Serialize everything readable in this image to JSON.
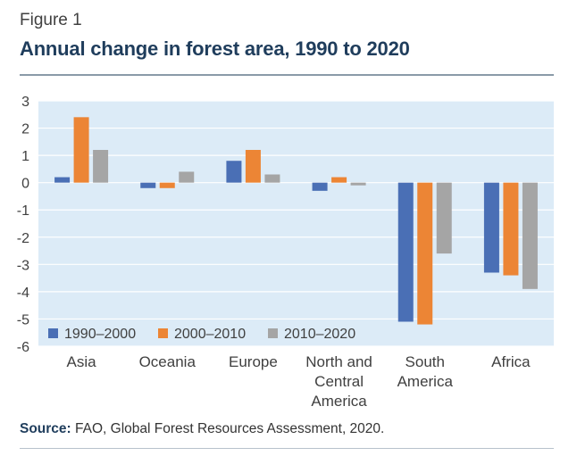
{
  "figure_label": "Figure 1",
  "title": "Annual change in forest area, 1990 to 2020",
  "source": {
    "label": "Source:",
    "text": " FAO, Global Forest Resources Assessment, 2020."
  },
  "colors": {
    "plot_background": "#dcebf7",
    "gridline": "#ffffff",
    "title": "#1f3d5c",
    "rule": "#8a9aa8"
  },
  "chart_data": {
    "type": "bar",
    "title": "Annual change in forest area, 1990 to 2020",
    "xlabel": "",
    "ylabel": "",
    "ylim": [
      -6,
      3
    ],
    "yticks": [
      3,
      2,
      1,
      0,
      -1,
      -2,
      -3,
      -4,
      -5,
      -6
    ],
    "grid": true,
    "legend_position": "bottom-left",
    "categories": [
      [
        "Asia"
      ],
      [
        "Oceania"
      ],
      [
        "Europe"
      ],
      [
        "North and",
        "Central",
        "America"
      ],
      [
        "South",
        "America"
      ],
      [
        "Africa"
      ]
    ],
    "series": [
      {
        "name": "1990–2000",
        "color": "#4a6fb5",
        "values": [
          0.2,
          -0.2,
          0.8,
          -0.3,
          -5.1,
          -3.3
        ]
      },
      {
        "name": "2000–2010",
        "color": "#ec8535",
        "values": [
          2.4,
          -0.2,
          1.2,
          0.2,
          -5.2,
          -3.4
        ]
      },
      {
        "name": "2010–2020",
        "color": "#a5a5a5",
        "values": [
          1.2,
          0.4,
          0.3,
          -0.1,
          -2.6,
          -3.9
        ]
      }
    ]
  }
}
